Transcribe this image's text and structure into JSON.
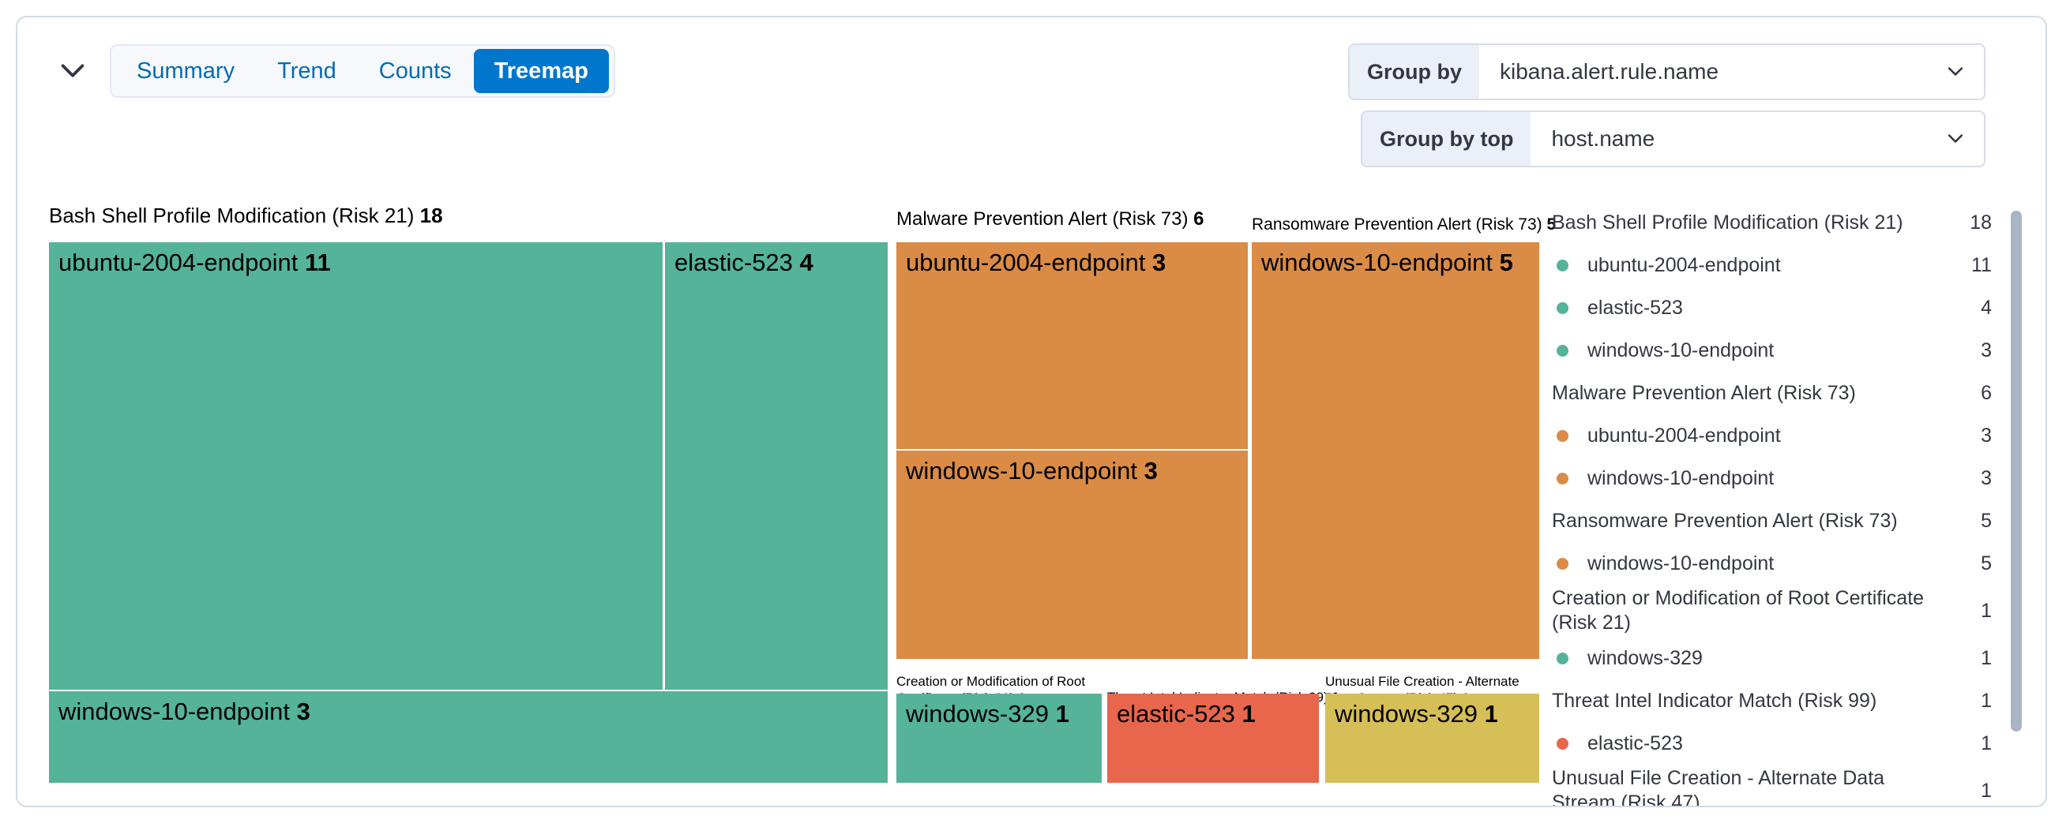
{
  "header": {
    "tabs": [
      "Summary",
      "Trend",
      "Counts",
      "Treemap"
    ],
    "selected_tab": "Treemap"
  },
  "controls": {
    "group_by": {
      "label": "Group by",
      "value": "kibana.alert.rule.name"
    },
    "group_by_top": {
      "label": "Group by top",
      "value": "host.name"
    }
  },
  "colors": {
    "accent": "#0077CC",
    "tab_text": "#006BB4",
    "green": "#54B399",
    "orange": "#DA8B45",
    "red": "#E7664C",
    "yellow": "#D6BF57",
    "border": "#D3DAE6"
  },
  "chart_data": {
    "type": "treemap",
    "group_by_field": "kibana.alert.rule.name",
    "child_field": "host.name",
    "legend_position": "right",
    "groups": [
      {
        "name": "Bash Shell Profile Modification (Risk 21)",
        "value": 18,
        "children": [
          {
            "name": "ubuntu-2004-endpoint",
            "value": 11,
            "color": "#54B399"
          },
          {
            "name": "elastic-523",
            "value": 4,
            "color": "#54B399"
          },
          {
            "name": "windows-10-endpoint",
            "value": 3,
            "color": "#54B399"
          }
        ]
      },
      {
        "name": "Malware Prevention Alert (Risk 73)",
        "value": 6,
        "children": [
          {
            "name": "ubuntu-2004-endpoint",
            "value": 3,
            "color": "#DA8B45"
          },
          {
            "name": "windows-10-endpoint",
            "value": 3,
            "color": "#DA8B45"
          }
        ]
      },
      {
        "name": "Ransomware Prevention Alert (Risk 73)",
        "value": 5,
        "children": [
          {
            "name": "windows-10-endpoint",
            "value": 5,
            "color": "#DA8B45"
          }
        ]
      },
      {
        "name": "Creation or Modification of Root Certificate (Risk 21)",
        "value": 1,
        "children": [
          {
            "name": "windows-329",
            "value": 1,
            "color": "#54B399"
          }
        ]
      },
      {
        "name": "Threat Intel Indicator Match (Risk 99)",
        "value": 1,
        "children": [
          {
            "name": "elastic-523",
            "value": 1,
            "color": "#E7664C"
          }
        ]
      },
      {
        "name": "Unusual File Creation - Alternate Data Stream (Risk 47)",
        "value": 1,
        "children": [
          {
            "name": "windows-329",
            "value": 1,
            "color": "#D6BF57"
          }
        ]
      }
    ]
  }
}
